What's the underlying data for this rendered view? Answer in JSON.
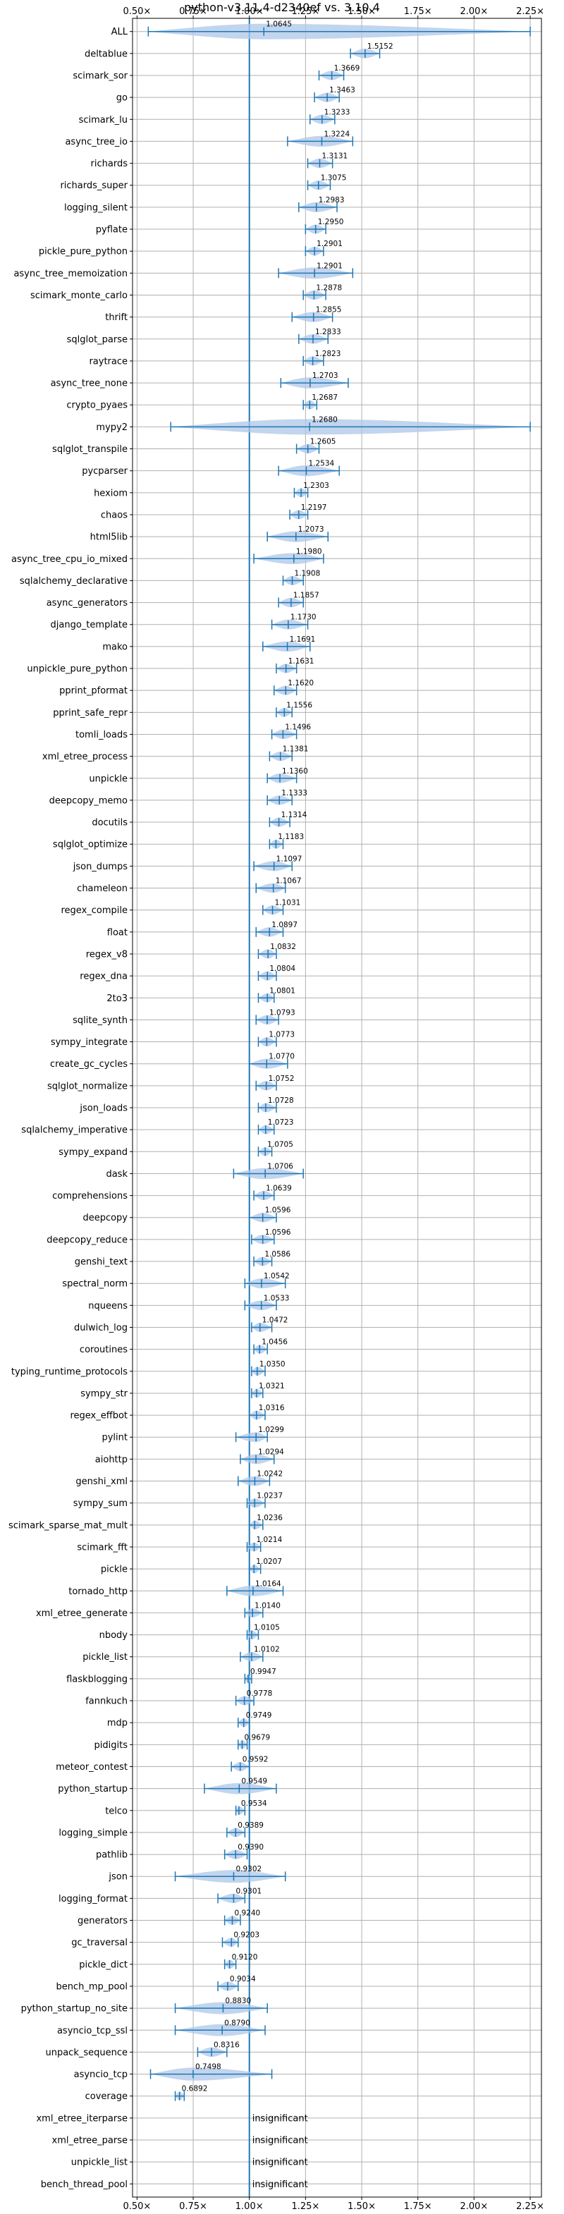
{
  "chart_data": {
    "type": "violin",
    "title": "python-v3.11.4-d2340ef vs. 3.10.4",
    "x_ticks": [
      "0.50×",
      "0.75×",
      "1.00×",
      "1.25×",
      "1.50×",
      "1.75×",
      "2.00×",
      "2.25×"
    ],
    "x_tick_values": [
      0.5,
      0.75,
      1.0,
      1.25,
      1.5,
      1.75,
      2.0,
      2.25
    ],
    "xlim": [
      0.48,
      2.3
    ],
    "reference_line": 1.0,
    "grid": true,
    "series_color": "#1f77b4",
    "violin_color": "#aec7e8",
    "categories": [
      "ALL",
      "deltablue",
      "scimark_sor",
      "go",
      "scimark_lu",
      "async_tree_io",
      "richards",
      "richards_super",
      "logging_silent",
      "pyflate",
      "pickle_pure_python",
      "async_tree_memoization",
      "scimark_monte_carlo",
      "thrift",
      "sqlglot_parse",
      "raytrace",
      "async_tree_none",
      "crypto_pyaes",
      "mypy2",
      "sqlglot_transpile",
      "pycparser",
      "hexiom",
      "chaos",
      "html5lib",
      "async_tree_cpu_io_mixed",
      "sqlalchemy_declarative",
      "async_generators",
      "django_template",
      "mako",
      "unpickle_pure_python",
      "pprint_pformat",
      "pprint_safe_repr",
      "tomli_loads",
      "xml_etree_process",
      "unpickle",
      "deepcopy_memo",
      "docutils",
      "sqlglot_optimize",
      "json_dumps",
      "chameleon",
      "regex_compile",
      "float",
      "regex_v8",
      "regex_dna",
      "2to3",
      "sqlite_synth",
      "sympy_integrate",
      "create_gc_cycles",
      "sqlglot_normalize",
      "json_loads",
      "sqlalchemy_imperative",
      "sympy_expand",
      "dask",
      "comprehensions",
      "deepcopy",
      "deepcopy_reduce",
      "genshi_text",
      "spectral_norm",
      "nqueens",
      "dulwich_log",
      "coroutines",
      "typing_runtime_protocols",
      "sympy_str",
      "regex_effbot",
      "pylint",
      "aiohttp",
      "genshi_xml",
      "sympy_sum",
      "scimark_sparse_mat_mult",
      "scimark_fft",
      "pickle",
      "tornado_http",
      "xml_etree_generate",
      "nbody",
      "pickle_list",
      "flaskblogging",
      "fannkuch",
      "mdp",
      "pidigits",
      "meteor_contest",
      "python_startup",
      "telco",
      "logging_simple",
      "pathlib",
      "json",
      "logging_format",
      "generators",
      "gc_traversal",
      "pickle_dict",
      "bench_mp_pool",
      "python_startup_no_site",
      "asyncio_tcp_ssl",
      "unpack_sequence",
      "asyncio_tcp",
      "coverage",
      "xml_etree_iterparse",
      "xml_etree_parse",
      "unpickle_list",
      "bench_thread_pool"
    ],
    "values": [
      1.0645,
      1.5152,
      1.3669,
      1.3463,
      1.3233,
      1.3224,
      1.3131,
      1.3075,
      1.2983,
      1.295,
      1.2901,
      1.2901,
      1.2878,
      1.2855,
      1.2833,
      1.2823,
      1.2703,
      1.2687,
      1.268,
      1.2605,
      1.2534,
      1.2303,
      1.2197,
      1.2073,
      1.198,
      1.1908,
      1.1857,
      1.173,
      1.1691,
      1.1631,
      1.162,
      1.1556,
      1.1496,
      1.1381,
      1.136,
      1.1333,
      1.1314,
      1.1183,
      1.1097,
      1.1067,
      1.1031,
      1.0897,
      1.0832,
      1.0804,
      1.0801,
      1.0793,
      1.0773,
      1.077,
      1.0752,
      1.0728,
      1.0723,
      1.0705,
      1.0706,
      1.0639,
      1.0596,
      1.0596,
      1.0586,
      1.0542,
      1.0533,
      1.0472,
      1.0456,
      1.035,
      1.0321,
      1.0316,
      1.0299,
      1.0294,
      1.0242,
      1.0237,
      1.0236,
      1.0214,
      1.0207,
      1.0164,
      1.014,
      1.0105,
      1.0102,
      0.9947,
      0.9778,
      0.9749,
      0.9679,
      0.9592,
      0.9549,
      0.9534,
      0.9389,
      0.939,
      0.9302,
      0.9301,
      0.924,
      0.9203,
      0.912,
      0.9034,
      0.883,
      0.879,
      0.8316,
      0.7498,
      0.6892,
      null,
      null,
      null,
      null
    ],
    "value_labels": [
      "1.0645",
      "1.5152",
      "1.3669",
      "1.3463",
      "1.3233",
      "1.3224",
      "1.3131",
      "1.3075",
      "1.2983",
      "1.2950",
      "1.2901",
      "1.2901",
      "1.2878",
      "1.2855",
      "1.2833",
      "1.2823",
      "1.2703",
      "1.2687",
      "1.2680",
      "1.2605",
      "1.2534",
      "1.2303",
      "1.2197",
      "1.2073",
      "1.1980",
      "1.1908",
      "1.1857",
      "1.1730",
      "1.1691",
      "1.1631",
      "1.1620",
      "1.1556",
      "1.1496",
      "1.1381",
      "1.1360",
      "1.1333",
      "1.1314",
      "1.1183",
      "1.1097",
      "1.1067",
      "1.1031",
      "1.0897",
      "1.0832",
      "1.0804",
      "1.0801",
      "1.0793",
      "1.0773",
      "1.0770",
      "1.0752",
      "1.0728",
      "1.0723",
      "1.0705",
      "1.0706",
      "1.0639",
      "1.0596",
      "1.0596",
      "1.0586",
      "1.0542",
      "1.0533",
      "1.0472",
      "1.0456",
      "1.0350",
      "1.0321",
      "1.0316",
      "1.0299",
      "1.0294",
      "1.0242",
      "1.0237",
      "1.0236",
      "1.0214",
      "1.0207",
      "1.0164",
      "1.0140",
      "1.0105",
      "1.0102",
      "0.9947",
      "0.9778",
      "0.9749",
      "0.9679",
      "0.9592",
      "0.9549",
      "0.9534",
      "0.9389",
      "0.9390",
      "0.9302",
      "0.9301",
      "0.9240",
      "0.9203",
      "0.9120",
      "0.9034",
      "0.8830",
      "0.8790",
      "0.8316",
      "0.7498",
      "0.6892",
      "insignificant",
      "insignificant",
      "insignificant",
      "insignificant"
    ],
    "ranges": [
      [
        0.55,
        2.25
      ],
      [
        1.45,
        1.58
      ],
      [
        1.31,
        1.42
      ],
      [
        1.29,
        1.4
      ],
      [
        1.27,
        1.38
      ],
      [
        1.17,
        1.46
      ],
      [
        1.26,
        1.37
      ],
      [
        1.26,
        1.36
      ],
      [
        1.22,
        1.39
      ],
      [
        1.25,
        1.34
      ],
      [
        1.25,
        1.33
      ],
      [
        1.13,
        1.46
      ],
      [
        1.24,
        1.34
      ],
      [
        1.19,
        1.37
      ],
      [
        1.22,
        1.35
      ],
      [
        1.24,
        1.33
      ],
      [
        1.14,
        1.44
      ],
      [
        1.24,
        1.3
      ],
      [
        0.65,
        2.25
      ],
      [
        1.21,
        1.31
      ],
      [
        1.13,
        1.4
      ],
      [
        1.2,
        1.26
      ],
      [
        1.18,
        1.26
      ],
      [
        1.08,
        1.35
      ],
      [
        1.02,
        1.33
      ],
      [
        1.15,
        1.24
      ],
      [
        1.13,
        1.24
      ],
      [
        1.1,
        1.26
      ],
      [
        1.06,
        1.27
      ],
      [
        1.12,
        1.21
      ],
      [
        1.11,
        1.21
      ],
      [
        1.12,
        1.19
      ],
      [
        1.1,
        1.21
      ],
      [
        1.09,
        1.19
      ],
      [
        1.08,
        1.21
      ],
      [
        1.08,
        1.19
      ],
      [
        1.09,
        1.18
      ],
      [
        1.09,
        1.15
      ],
      [
        1.02,
        1.19
      ],
      [
        1.03,
        1.16
      ],
      [
        1.06,
        1.15
      ],
      [
        1.03,
        1.15
      ],
      [
        1.04,
        1.12
      ],
      [
        1.04,
        1.12
      ],
      [
        1.04,
        1.11
      ],
      [
        1.03,
        1.13
      ],
      [
        1.04,
        1.12
      ],
      [
        1.0,
        1.17
      ],
      [
        1.03,
        1.12
      ],
      [
        1.04,
        1.12
      ],
      [
        1.04,
        1.11
      ],
      [
        1.04,
        1.1
      ],
      [
        0.93,
        1.24
      ],
      [
        1.02,
        1.11
      ],
      [
        1.0,
        1.12
      ],
      [
        1.01,
        1.11
      ],
      [
        1.02,
        1.1
      ],
      [
        0.98,
        1.16
      ],
      [
        0.98,
        1.12
      ],
      [
        1.01,
        1.1
      ],
      [
        1.02,
        1.08
      ],
      [
        1.01,
        1.07
      ],
      [
        1.01,
        1.06
      ],
      [
        1.0,
        1.07
      ],
      [
        0.94,
        1.08
      ],
      [
        0.96,
        1.11
      ],
      [
        0.95,
        1.09
      ],
      [
        0.99,
        1.07
      ],
      [
        1.0,
        1.06
      ],
      [
        0.99,
        1.05
      ],
      [
        1.0,
        1.05
      ],
      [
        0.9,
        1.15
      ],
      [
        0.98,
        1.06
      ],
      [
        0.99,
        1.04
      ],
      [
        0.96,
        1.06
      ],
      [
        0.98,
        1.01
      ],
      [
        0.94,
        1.02
      ],
      [
        0.95,
        1.0
      ],
      [
        0.95,
        0.99
      ],
      [
        0.92,
        1.0
      ],
      [
        0.8,
        1.12
      ],
      [
        0.94,
        0.98
      ],
      [
        0.9,
        0.98
      ],
      [
        0.89,
        0.99
      ],
      [
        0.67,
        1.16
      ],
      [
        0.86,
        0.98
      ],
      [
        0.89,
        0.96
      ],
      [
        0.88,
        0.95
      ],
      [
        0.89,
        0.94
      ],
      [
        0.86,
        0.95
      ],
      [
        0.67,
        1.08
      ],
      [
        0.67,
        1.07
      ],
      [
        0.77,
        0.9
      ],
      [
        0.56,
        1.1
      ],
      [
        0.67,
        0.71
      ],
      null,
      null,
      null,
      null
    ]
  }
}
